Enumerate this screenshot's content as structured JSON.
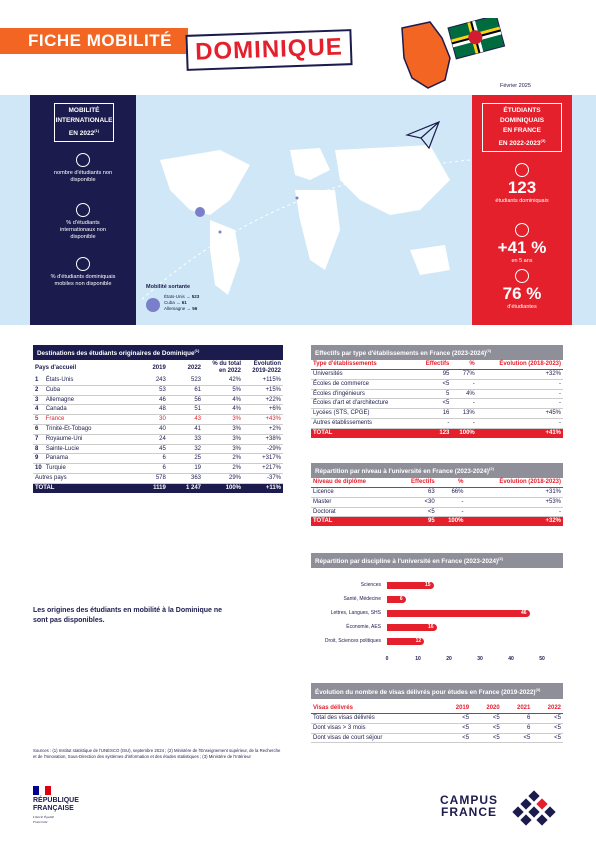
{
  "header": {
    "fiche": "FICHE MOBILITÉ",
    "country": "DOMINIQUE",
    "date": "Février 2025"
  },
  "mobility_box": {
    "title_l1": "MOBILITÉ",
    "title_l2": "INTERNATIONALE",
    "title_l3": "EN 2022",
    "title_sup": "(1)",
    "items": [
      {
        "icon": "graduation-cap-icon",
        "text": "nombre d'étudiants non disponible"
      },
      {
        "icon": "globe-icon",
        "text": "% d'étudiants internationaux non disponible"
      },
      {
        "icon": "paper-plane-icon",
        "text": "% d'étudiants dominiquais mobiles non disponible"
      }
    ]
  },
  "map": {
    "legend_title": "Mobilité sortante",
    "legend_items": [
      {
        "country": "États-Unis",
        "value": "523"
      },
      {
        "country": "Cuba",
        "value": "61"
      },
      {
        "country": "Allemagne",
        "value": "56"
      }
    ]
  },
  "students_box": {
    "title_l1": "ÉTUDIANTS",
    "title_l2": "DOMINIQUAIS",
    "title_l3": "EN FRANCE",
    "title_l4": "EN 2022-2023",
    "title_sup": "(3)",
    "count": "123",
    "count_label": "étudiants dominiquais",
    "growth": "+41 %",
    "growth_label": "en 5 ans",
    "women": "76 %",
    "women_label": "d'étudiantes"
  },
  "destinations": {
    "title": "Destinations des étudiants originaires de Dominique",
    "sup": "(1)",
    "headers": [
      "Pays d'accueil",
      "2019",
      "2022",
      "% du total en 2022",
      "Évolution 2019-2022"
    ],
    "rows": [
      [
        "1",
        "États-Unis",
        "243",
        "523",
        "42%",
        "+115%"
      ],
      [
        "2",
        "Cuba",
        "53",
        "61",
        "5%",
        "+15%"
      ],
      [
        "3",
        "Allemagne",
        "46",
        "56",
        "4%",
        "+22%"
      ],
      [
        "4",
        "Canada",
        "48",
        "51",
        "4%",
        "+6%"
      ],
      [
        "5",
        "France",
        "30",
        "43",
        "3%",
        "+43%"
      ],
      [
        "6",
        "Trinité-Et-Tobago",
        "40",
        "41",
        "3%",
        "+2%"
      ],
      [
        "7",
        "Royaume-Uni",
        "24",
        "33",
        "3%",
        "+38%"
      ],
      [
        "8",
        "Sainte-Lucie",
        "45",
        "32",
        "3%",
        "-29%"
      ],
      [
        "9",
        "Panama",
        "6",
        "25",
        "2%",
        "+317%"
      ],
      [
        "10",
        "Turquie",
        "6",
        "19",
        "2%",
        "+217%"
      ]
    ],
    "other": [
      "Autres pays",
      "578",
      "363",
      "29%",
      "-37%"
    ],
    "total": [
      "TOTAL",
      "1119",
      "1 247",
      "100%",
      "+11%"
    ]
  },
  "etab": {
    "title": "Effectifs par type d'établissements en France (2023-2024)",
    "sup": "(2)",
    "headers": [
      "Type d'établissements",
      "Effectifs",
      "%",
      "Évolution (2018-2023)"
    ],
    "rows": [
      [
        "Universités",
        "95",
        "77%",
        "+32%"
      ],
      [
        "Écoles de commerce",
        "<5",
        "-",
        "-"
      ],
      [
        "Écoles d'ingénieurs",
        "5",
        "4%",
        "-"
      ],
      [
        "Écoles d'art et d'architecture",
        "<5",
        "-",
        "-"
      ],
      [
        "Lycées (STS, CPGE)",
        "16",
        "13%",
        "+45%"
      ],
      [
        "Autres établissements",
        "-",
        "-",
        "-"
      ]
    ],
    "total": [
      "TOTAL",
      "123",
      "100%",
      "+41%"
    ]
  },
  "niveau": {
    "title": "Répartition par niveau à l'université en France (2023-2024)",
    "sup": "(2)",
    "headers": [
      "Niveau de diplôme",
      "Effectifs",
      "%",
      "Évolution (2018-2023)"
    ],
    "rows": [
      [
        "Licence",
        "63",
        "66%",
        "+31%"
      ],
      [
        "Master",
        "<30",
        "-",
        "+53%"
      ],
      [
        "Doctorat",
        "<5",
        "-",
        "-"
      ]
    ],
    "total": [
      "TOTAL",
      "95",
      "100%",
      "+32%"
    ]
  },
  "chart_data": {
    "type": "bar",
    "title": "Répartition par discipline à l'université en France (2023-2024)",
    "sup": "(2)",
    "categories": [
      "Sciences",
      "Santé, Médecine",
      "Lettres, Langues, SHS",
      "Économie, AES",
      "Droit, Sciences politiques"
    ],
    "values": [
      15,
      6,
      46,
      16,
      12
    ],
    "ticks": [
      "0",
      "10",
      "20",
      "30",
      "40",
      "50"
    ],
    "xlim": [
      0,
      50
    ]
  },
  "visas": {
    "title": "Évolution du nombre de visas délivrés pour études en France (2019-2022)",
    "sup": "(3)",
    "headers": [
      "Visas délivrés",
      "2019",
      "2020",
      "2021",
      "2022"
    ],
    "rows": [
      [
        "Total des visas délivrés",
        "<5",
        "<5",
        "6",
        "<5"
      ],
      [
        "Dont visas > 3 mois",
        "<5",
        "<5",
        "6",
        "<5"
      ],
      [
        "Dont visas de court séjour",
        "<5",
        "<5",
        "<5",
        "<5"
      ]
    ]
  },
  "origin_note": "Les origines des étudiants en mobilité à la Dominique ne sont pas disponibles.",
  "sources": "Sources : (1) Institut statistique de l'UNESCO (ISU), septembre 2024 ; (2) Ministère de l'Enseignement supérieur, de la Recherche et de l'Innovation, Sous-Direction des systèmes d'information et des études statistiques ; (3) Ministère de l'Intérieur",
  "footer": {
    "rf_l1": "RÉPUBLIQUE",
    "rf_l2": "FRANÇAISE",
    "motto": "Liberté Égalité Fraternité",
    "cf_l1": "CAMPUS",
    "cf_l2": "FRANCE"
  }
}
